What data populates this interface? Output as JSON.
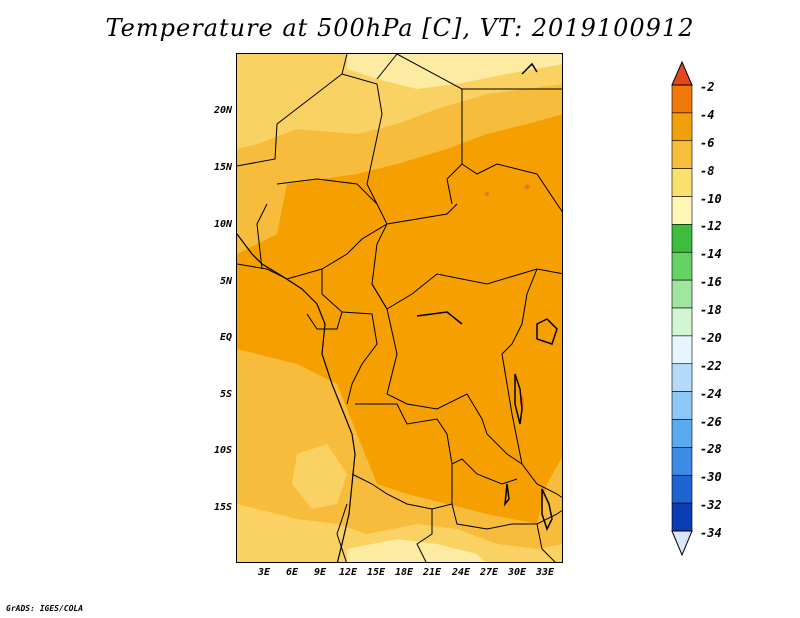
{
  "title": "Temperature at 500hPa [C], VT: 2019100912",
  "credit": "GrADS: IGES/COLA",
  "y_ticks": [
    "20N",
    "15N",
    "10N",
    "5N",
    "EQ",
    "5S",
    "10S",
    "15S"
  ],
  "x_ticks": [
    "3E",
    "6E",
    "9E",
    "12E",
    "15E",
    "18E",
    "21E",
    "24E",
    "27E",
    "30E",
    "33E"
  ],
  "colorbar": {
    "labels": [
      "-2",
      "-4",
      "-6",
      "-8",
      "-10",
      "-12",
      "-14",
      "-16",
      "-18",
      "-20",
      "-22",
      "-24",
      "-26",
      "-28",
      "-30",
      "-32",
      "-34"
    ],
    "colors": [
      "#f0501e",
      "#f0780a",
      "#f0a00a",
      "#f5be3c",
      "#fae16e",
      "#fff5b4",
      "#3cbe3c",
      "#64d264",
      "#a0e6a0",
      "#d2f5d2",
      "#e6f5ff",
      "#b4dcfa",
      "#8cc8f5",
      "#5aaaf0",
      "#3c8ce6",
      "#1e64d2",
      "#0a3cb4",
      "#000a78"
    ],
    "top_color": "#e6461e",
    "bottom_color": "#dce6fa"
  },
  "colors": {
    "band_minus4": "#f5a000",
    "band_minus6": "#f8bc3c",
    "band_minus8": "#fad264",
    "band_minus10": "#fceba0",
    "hotspot": "#f07020"
  }
}
